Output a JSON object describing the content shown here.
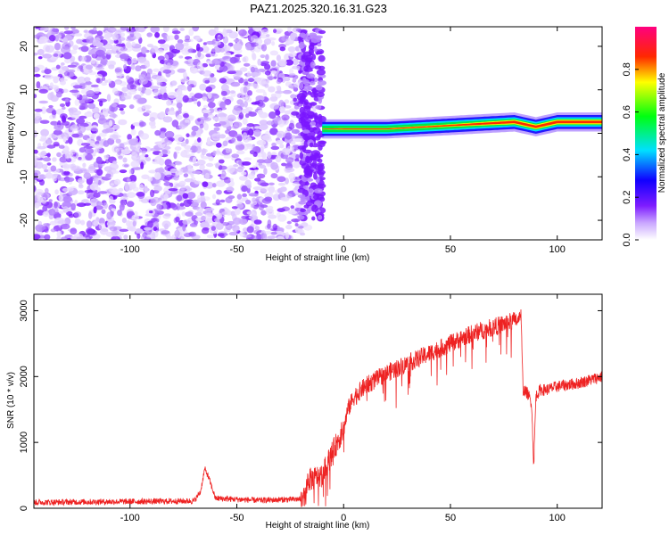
{
  "title": "PAZ1.2025.320.16.31.G23",
  "chart_data": [
    {
      "type": "heatmap",
      "xlabel": "Height of straight line (km)",
      "ylabel": "Frequency (Hz)",
      "xlim": [
        -145,
        121
      ],
      "ylim": [
        -24.5,
        24.5
      ],
      "xticks": [
        -100,
        -50,
        0,
        50,
        100
      ],
      "xtick_labels": [
        "-100",
        "-50",
        "0",
        "50",
        "100"
      ],
      "yticks": [
        -20,
        -10,
        0,
        10,
        20
      ],
      "ytick_labels": [
        "-20",
        "-10",
        "0",
        "10",
        "20"
      ],
      "colorbar": {
        "label": "Normalized spectral amplitude",
        "range": [
          0,
          1
        ],
        "ticks": [
          0.0,
          0.2,
          0.4,
          0.6,
          0.8
        ],
        "tick_labels": [
          "0.0",
          "0.2",
          "0.4",
          "0.6",
          "0.8"
        ],
        "colormap": "rainbow (white - violet - blue - cyan - green - yellow - red - magenta)"
      },
      "regions": [
        {
          "description": "noise speckle",
          "x_range": [
            -145,
            -18
          ],
          "freq_range": [
            -24.5,
            24.5
          ],
          "amplitude_range": [
            0.0,
            0.15
          ]
        },
        {
          "description": "transition blobs",
          "x_range": [
            -20,
            -10
          ],
          "freq_range": [
            -20,
            24
          ],
          "amplitude_range": [
            0.05,
            0.15
          ]
        },
        {
          "description": "signal track",
          "x_range": [
            -10,
            121
          ],
          "center_frequency": [
            [
              -10,
              1.0
            ],
            [
              0,
              1.0
            ],
            [
              20,
              1.0
            ],
            [
              50,
              1.8
            ],
            [
              80,
              2.6
            ],
            [
              90,
              1.5
            ],
            [
              100,
              2.6
            ],
            [
              121,
              2.6
            ]
          ],
          "peak_amplitude": [
            [
              -10,
              0.6
            ],
            [
              0,
              0.7
            ],
            [
              20,
              0.7
            ],
            [
              50,
              0.8
            ],
            [
              70,
              0.9
            ],
            [
              80,
              0.95
            ],
            [
              100,
              0.97
            ],
            [
              121,
              0.97
            ]
          ]
        }
      ]
    },
    {
      "type": "line",
      "xlabel": "Height of straight line (km)",
      "ylabel": "SNR (10 * v/v)",
      "xlim": [
        -145,
        121
      ],
      "ylim": [
        0,
        3250
      ],
      "xticks": [
        -100,
        -50,
        0,
        50,
        100
      ],
      "xtick_labels": [
        "-100",
        "-50",
        "0",
        "50",
        "100"
      ],
      "yticks": [
        0,
        1000,
        2000,
        3000
      ],
      "ytick_labels": [
        "0",
        "1000",
        "2000",
        "3000"
      ],
      "color": "#ee2222",
      "series": [
        {
          "name": "SNR",
          "x": [
            -145,
            -70,
            -67,
            -65,
            -63,
            -60,
            -40,
            -18,
            -17,
            -10,
            -6,
            -3,
            0,
            2,
            5,
            10,
            20,
            30,
            40,
            50,
            60,
            70,
            80,
            82,
            83,
            84,
            86,
            88,
            89,
            90,
            92,
            95,
            100,
            110,
            121
          ],
          "y": [
            90,
            110,
            250,
            600,
            450,
            150,
            120,
            140,
            420,
            500,
            800,
            1000,
            1200,
            1500,
            1700,
            1850,
            2050,
            2200,
            2350,
            2500,
            2650,
            2750,
            2850,
            2900,
            2950,
            1800,
            1750,
            1600,
            650,
            1700,
            1800,
            1800,
            1850,
            1900,
            2000
          ]
        }
      ]
    }
  ]
}
